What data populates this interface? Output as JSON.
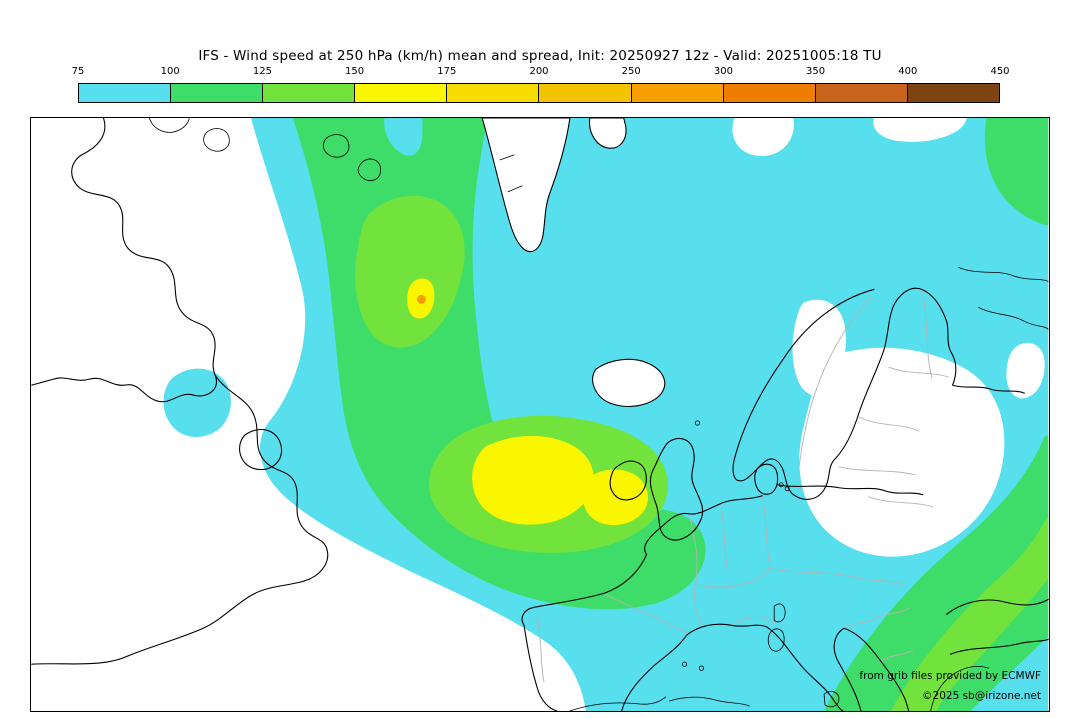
{
  "header": {
    "title": "IFS - Wind speed at 250 hPa (km/h) mean and spread, Init: 20250927 12z - Valid: 20251005:18 TU"
  },
  "colorbar": {
    "unit": "km/h",
    "ticks": [
      "75",
      "100",
      "125",
      "150",
      "175",
      "200",
      "250",
      "300",
      "350",
      "400",
      "450"
    ],
    "colors": [
      "#57dfee",
      "#3edc69",
      "#71e33c",
      "#f9f600",
      "#f8dc00",
      "#f2c400",
      "#f79e00",
      "#ee7d00",
      "#c8641c",
      "#7e4312"
    ]
  },
  "map": {
    "attribution_line1": "from grib files provided by ECMWF",
    "attribution_line2": "©2025 sb@irizone.net",
    "background_color": "#ffffff",
    "coastline_color": "#000000",
    "country_border_color": "#b4b4b4"
  }
}
